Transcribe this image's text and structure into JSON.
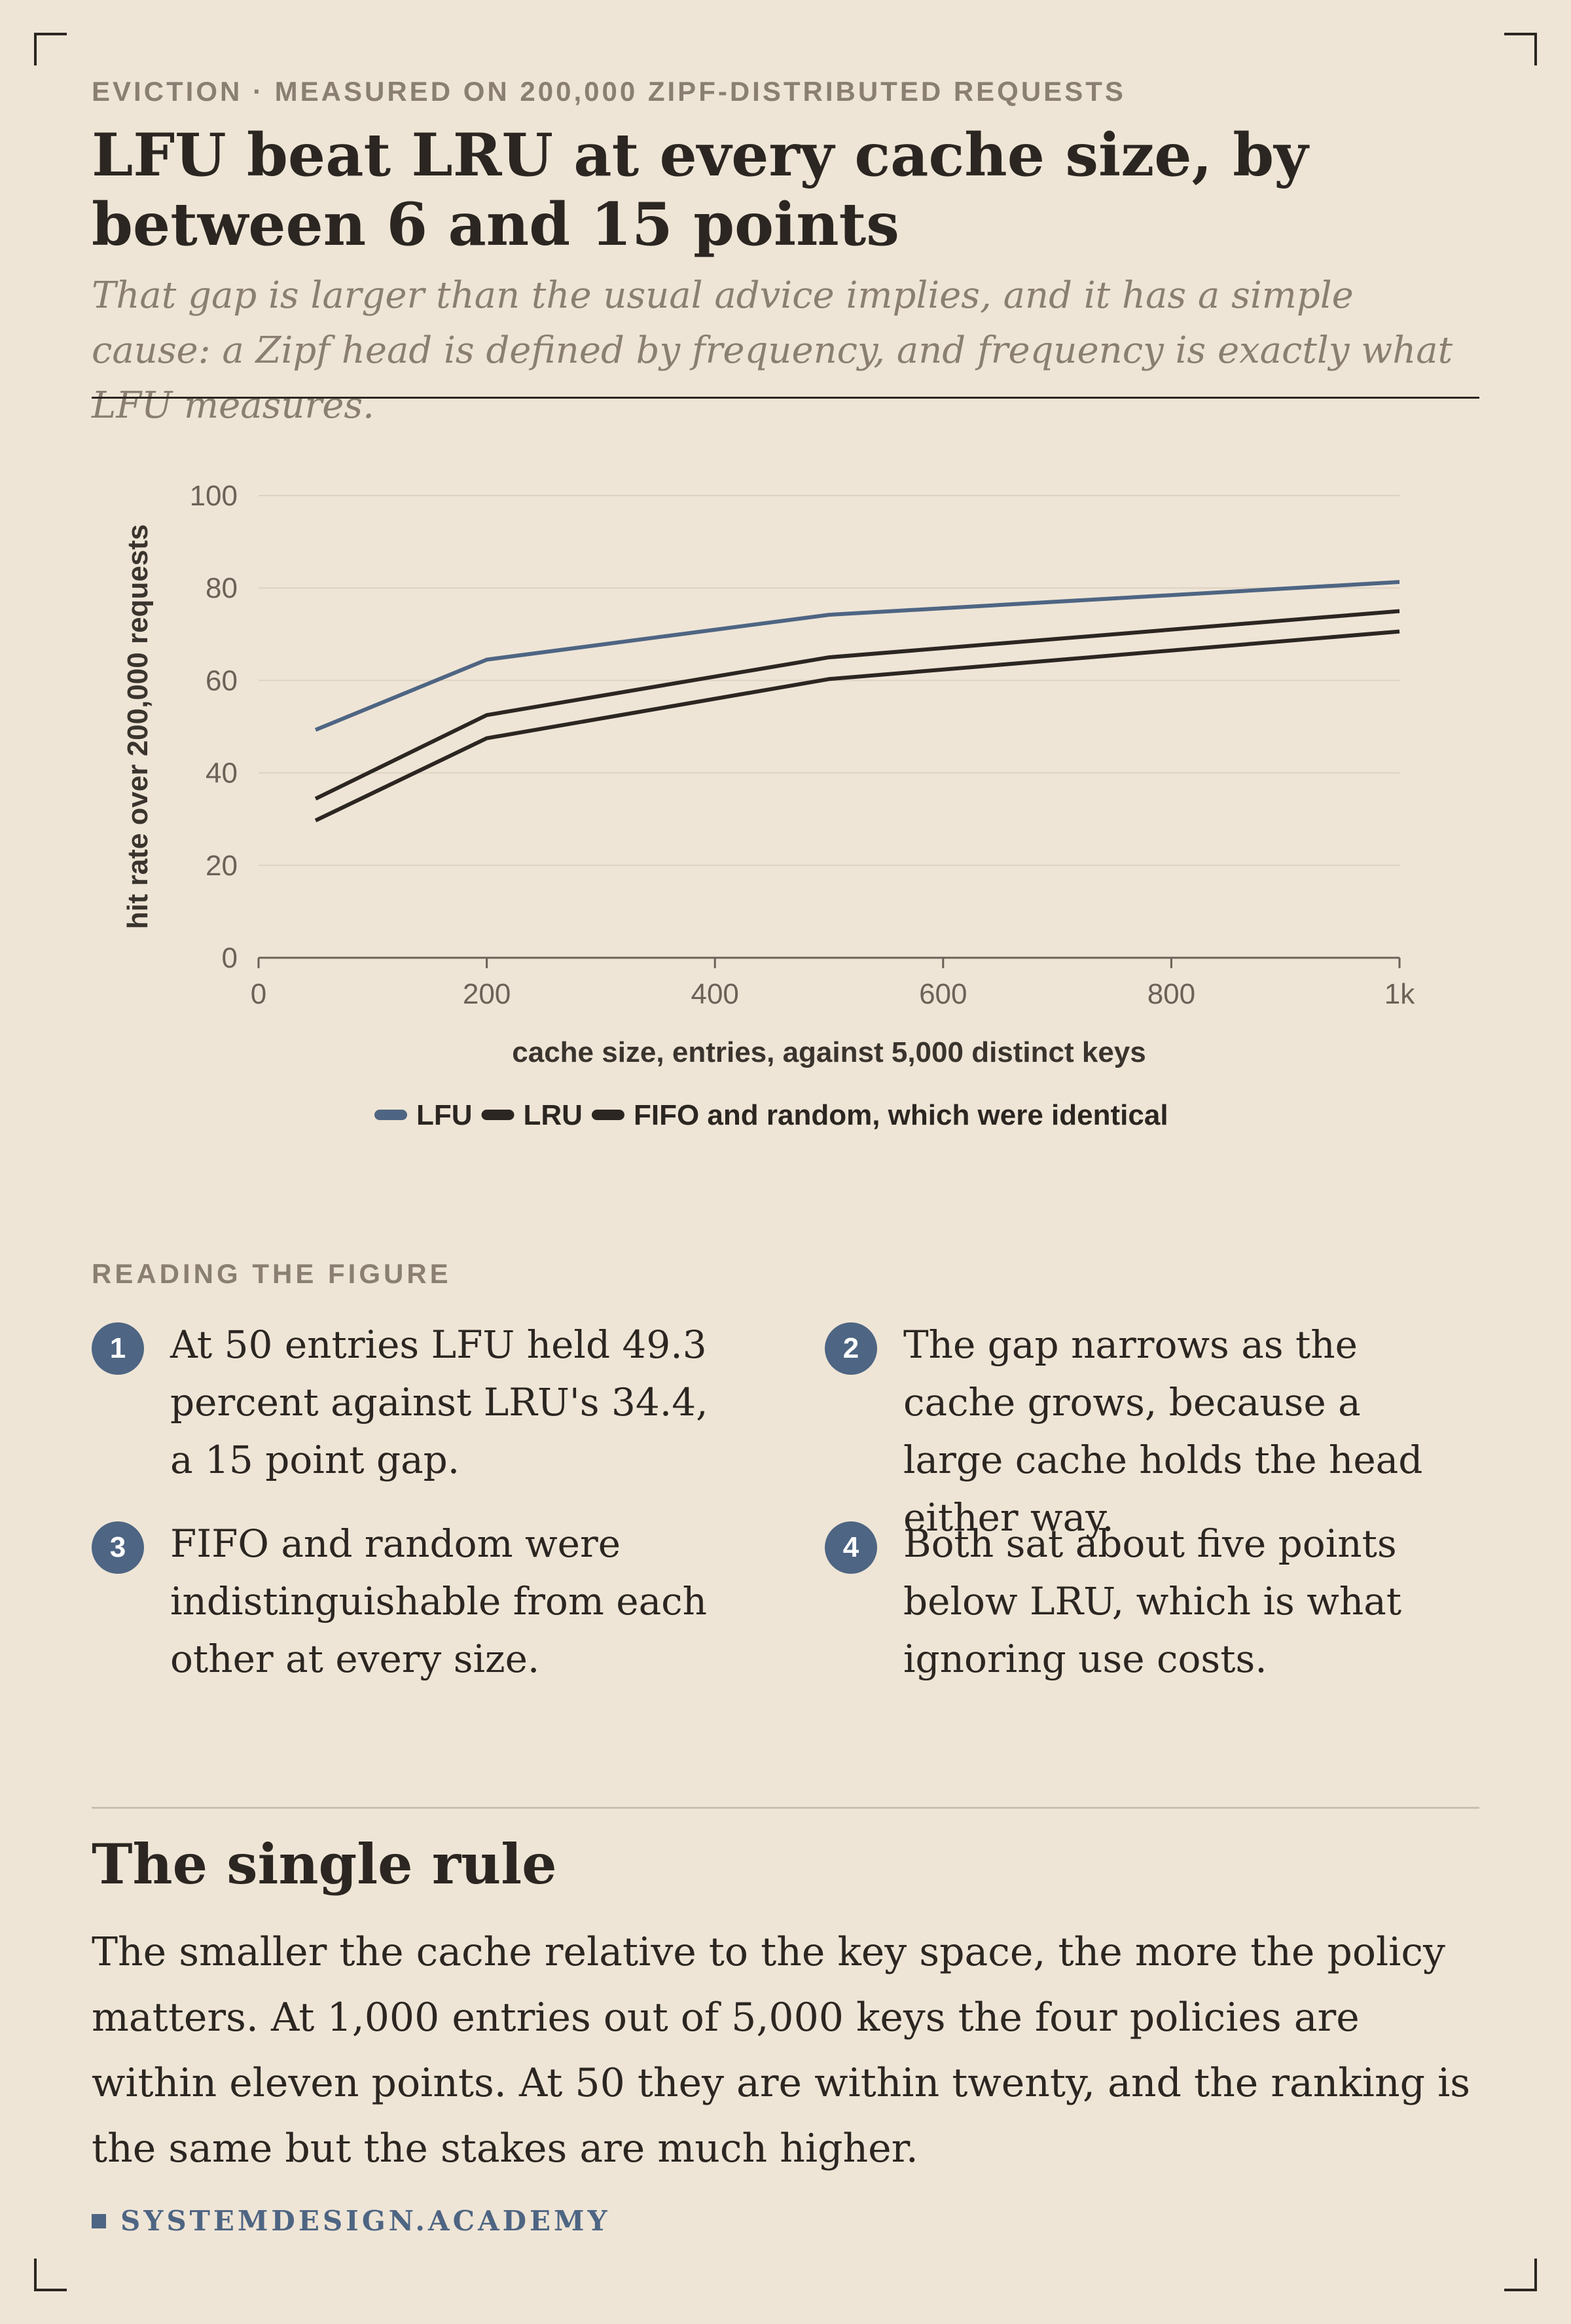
{
  "kicker": "EVICTION · MEASURED ON 200,000 ZIPF-DISTRIBUTED REQUESTS",
  "title": "LFU beat LRU at every cache size, by between 6 and 15 points",
  "subtitle": "That gap is larger than the usual advice implies, and it has a simple cause: a Zipf head is defined by frequency, and frequency is exactly what LFU measures.",
  "chart_data": {
    "type": "line",
    "title": "",
    "xlabel": "cache size, entries, against 5,000 distinct keys",
    "ylabel": "hit rate over 200,000 requests",
    "xlim": [
      0,
      1000
    ],
    "ylim": [
      0,
      100
    ],
    "x_ticks": [
      0,
      200,
      400,
      600,
      800,
      1000
    ],
    "x_tick_labels": [
      "0",
      "200",
      "400",
      "600",
      "800",
      "1k"
    ],
    "y_ticks": [
      0,
      20,
      40,
      60,
      80,
      100
    ],
    "y_tick_labels": [
      "0",
      "20",
      "40",
      "60",
      "80",
      "100"
    ],
    "grid": true,
    "legend_position": "bottom",
    "series": [
      {
        "name": "LFU",
        "color": "#4e6583",
        "x": [
          50,
          200,
          500,
          1000
        ],
        "y": [
          49.3,
          64.5,
          74.2,
          81.3
        ]
      },
      {
        "name": "LRU",
        "color": "#2b2621",
        "x": [
          50,
          200,
          500,
          1000
        ],
        "y": [
          34.4,
          52.5,
          65.0,
          75.0
        ]
      },
      {
        "name": "FIFO and random, which were identical",
        "color": "#2b2621",
        "x": [
          50,
          200,
          500,
          1000
        ],
        "y": [
          29.7,
          47.5,
          60.3,
          70.6
        ]
      }
    ]
  },
  "reading": {
    "label": "READING THE FIGURE",
    "notes": [
      {
        "num": "1",
        "text": "At 50 entries LFU held 49.3 percent against LRU's 34.4, a 15 point gap."
      },
      {
        "num": "2",
        "text": "The gap narrows as the cache grows, because a large cache holds the head either way."
      },
      {
        "num": "3",
        "text": "FIFO and random were indistinguishable from each other at every size."
      },
      {
        "num": "4",
        "text": "Both sat about five points below LRU, which is what ignoring use costs."
      }
    ]
  },
  "rule": {
    "heading": "The single rule",
    "body": "The smaller the cache relative to the key space, the more the policy matters. At 1,000 entries out of 5,000 keys the four policies are within eleven points. At 50 they are within twenty, and the ranking is the same but the stakes are much higher."
  },
  "brand": "SYSTEMDESIGN.ACADEMY",
  "colors": {
    "accent": "#4e6583",
    "ink": "#2b2621",
    "muted": "#8a7f72",
    "background": "#efe5d6"
  }
}
